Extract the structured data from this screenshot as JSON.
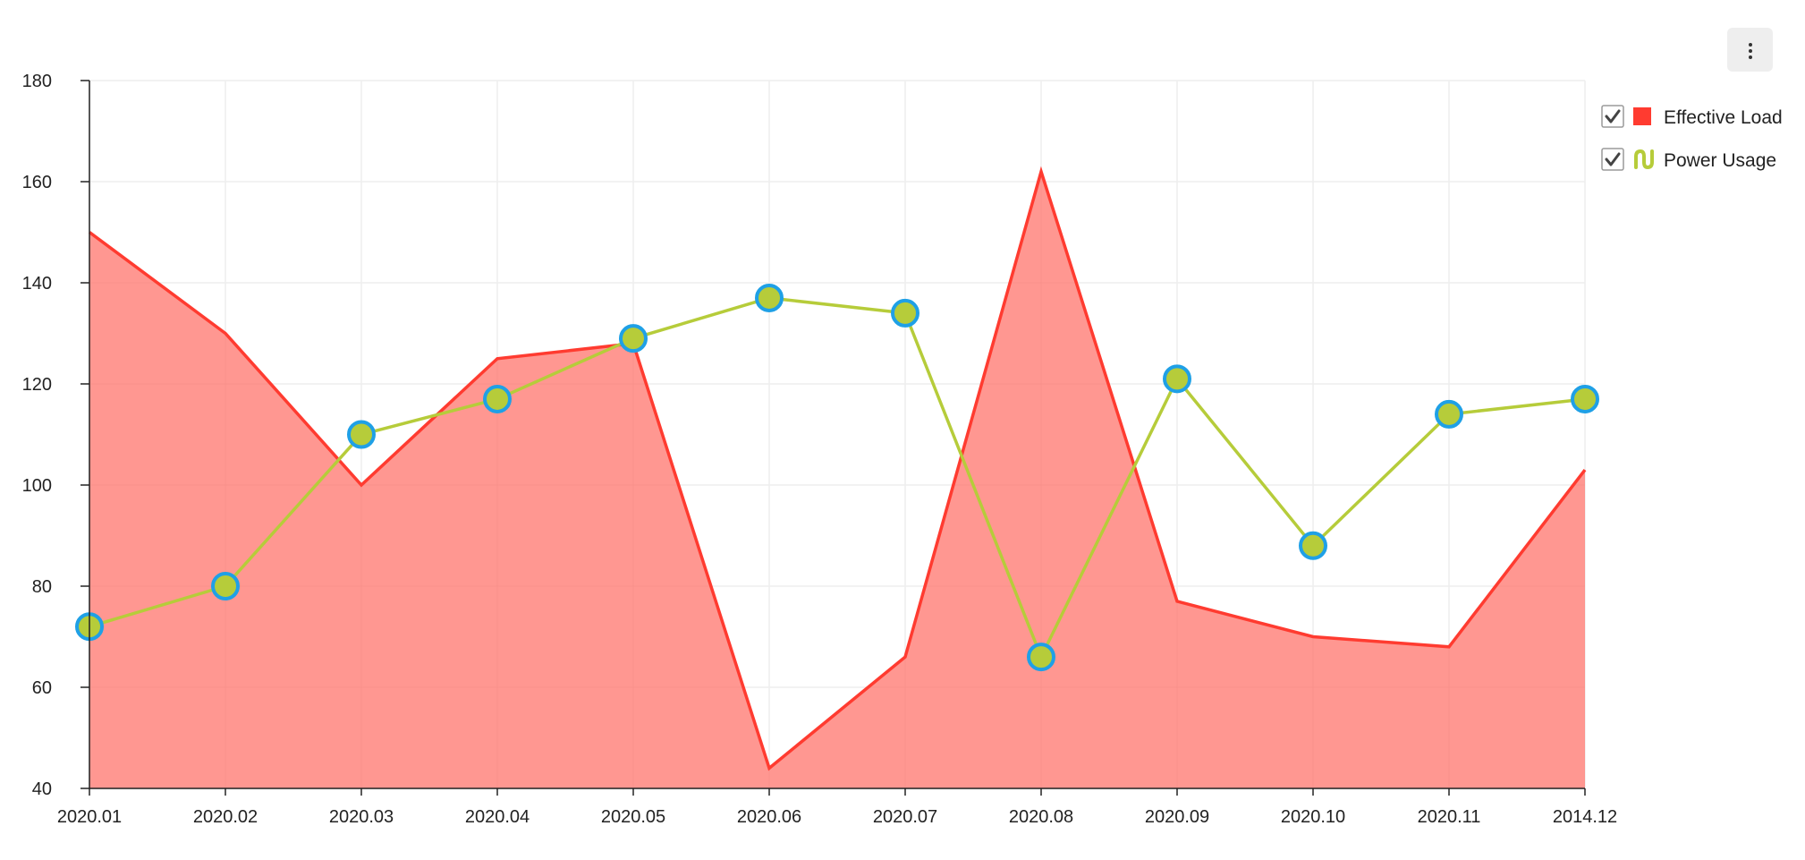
{
  "colors": {
    "effective_load_line": "#ff3b30",
    "effective_load_fill": "#ff6f66",
    "power_usage_line": "#b6cc3a",
    "power_usage_marker_fill": "#b6cc3a",
    "power_usage_marker_stroke": "#1fa0e6",
    "grid": "#eeeeee",
    "axis": "#222222",
    "menu_button_bg": "#eeeeee"
  },
  "toolbar": {
    "menu_icon": "more-vertical-icon"
  },
  "chart_data": {
    "type": "line",
    "title": "",
    "xlabel": "",
    "ylabel": "",
    "categories": [
      "2020.01",
      "2020.02",
      "2020.03",
      "2020.04",
      "2020.05",
      "2020.06",
      "2020.07",
      "2020.08",
      "2020.09",
      "2020.10",
      "2020.11",
      "2014.12"
    ],
    "ylim": [
      40,
      180
    ],
    "yticks": [
      40,
      60,
      80,
      100,
      120,
      140,
      160,
      180
    ],
    "grid": true,
    "legend_position": "top-right",
    "series": [
      {
        "name": "Effective Load",
        "type": "area",
        "checked": true,
        "legend_icon": "square-icon",
        "values": [
          150,
          130,
          100,
          125,
          128,
          44,
          66,
          162,
          77,
          70,
          68,
          103
        ]
      },
      {
        "name": "Power Usage",
        "type": "line",
        "checked": true,
        "legend_icon": "line-series-icon",
        "values": [
          72,
          80,
          110,
          117,
          129,
          137,
          134,
          66,
          121,
          88,
          114,
          117
        ]
      }
    ]
  }
}
